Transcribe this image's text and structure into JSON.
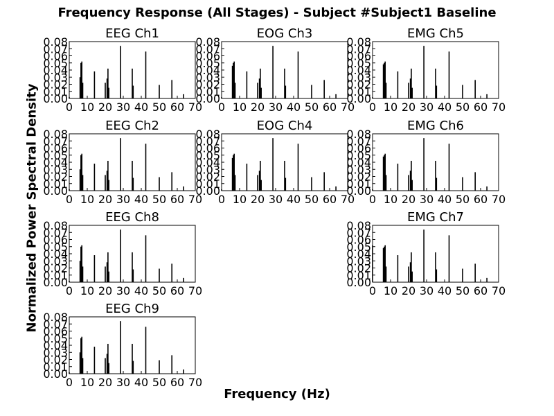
{
  "title": "Frequency Response (All Stages) - Subject #Subject1 Baseline",
  "xlabel": "Frequency (Hz)",
  "ylabel": "Normalized Power Spectral Density",
  "chart_data": {
    "type": "bar",
    "title": "Frequency Response (All Stages) - Subject #Subject1 Baseline",
    "xlabel": "Frequency (Hz)",
    "ylabel": "Normalized Power Spectral Density",
    "xlim": [
      0,
      70
    ],
    "ylim": [
      0,
      0.08
    ],
    "xticks": [
      "0",
      "10",
      "20",
      "30",
      "40",
      "50",
      "60",
      "70"
    ],
    "yticks": [
      "0.00",
      "0.01",
      "0.02",
      "0.03",
      "0.04",
      "0.05",
      "0.06",
      "0.07",
      "0.08"
    ],
    "grid": false,
    "panels": [
      {
        "name": "EEG Ch1",
        "x": [
          0,
          6,
          6.5,
          7,
          7.5,
          14,
          20,
          21,
          21.5,
          22,
          28.5,
          35,
          35.5,
          42.5,
          50,
          57,
          63.5
        ],
        "values": [
          0.002,
          0.03,
          0.05,
          0.052,
          0.022,
          0.038,
          0.022,
          0.028,
          0.042,
          0.015,
          0.074,
          0.042,
          0.018,
          0.066,
          0.019,
          0.026,
          0.006
        ]
      },
      {
        "name": "EOG Ch3",
        "x": [
          0,
          6,
          6.5,
          7,
          7.5,
          14,
          20,
          21,
          21.5,
          22,
          28.5,
          35,
          35.5,
          42.5,
          50,
          57,
          63.5
        ],
        "values": [
          0.002,
          0.046,
          0.05,
          0.052,
          0.022,
          0.038,
          0.022,
          0.028,
          0.042,
          0.015,
          0.074,
          0.042,
          0.018,
          0.066,
          0.019,
          0.026,
          0.006
        ]
      },
      {
        "name": "EMG Ch5",
        "x": [
          0,
          6,
          6.5,
          7,
          7.5,
          14,
          20,
          21,
          21.5,
          22,
          28.5,
          35,
          35.5,
          42.5,
          50,
          57,
          63.5
        ],
        "values": [
          0.002,
          0.048,
          0.05,
          0.052,
          0.022,
          0.038,
          0.022,
          0.028,
          0.042,
          0.015,
          0.074,
          0.042,
          0.018,
          0.066,
          0.019,
          0.026,
          0.006
        ]
      },
      {
        "name": "EEG Ch2",
        "x": [
          0,
          6,
          6.5,
          7,
          7.5,
          14,
          20,
          21,
          21.5,
          22,
          28.5,
          35,
          35.5,
          42.5,
          50,
          57,
          63.5
        ],
        "values": [
          0.002,
          0.03,
          0.05,
          0.052,
          0.022,
          0.038,
          0.022,
          0.028,
          0.042,
          0.015,
          0.074,
          0.042,
          0.018,
          0.066,
          0.019,
          0.026,
          0.006
        ]
      },
      {
        "name": "EOG Ch4",
        "x": [
          0,
          6,
          6.5,
          7,
          7.5,
          14,
          20,
          21,
          21.5,
          22,
          28.5,
          35,
          35.5,
          42.5,
          50,
          57,
          63.5
        ],
        "values": [
          0.002,
          0.046,
          0.05,
          0.052,
          0.022,
          0.038,
          0.022,
          0.028,
          0.042,
          0.015,
          0.074,
          0.042,
          0.018,
          0.066,
          0.019,
          0.026,
          0.006
        ]
      },
      {
        "name": "EMG Ch6",
        "x": [
          0,
          6,
          6.5,
          7,
          7.5,
          14,
          20,
          21,
          21.5,
          22,
          28.5,
          35,
          35.5,
          42.5,
          50,
          57,
          63.5
        ],
        "values": [
          0.002,
          0.048,
          0.05,
          0.052,
          0.022,
          0.038,
          0.022,
          0.028,
          0.042,
          0.015,
          0.074,
          0.042,
          0.018,
          0.066,
          0.019,
          0.026,
          0.006
        ]
      },
      {
        "name": "EEG Ch8",
        "x": [
          0,
          6,
          6.5,
          7,
          7.5,
          14,
          20,
          21,
          21.5,
          22,
          28.5,
          35,
          35.5,
          42.5,
          50,
          57,
          63.5
        ],
        "values": [
          0.002,
          0.03,
          0.05,
          0.052,
          0.022,
          0.038,
          0.022,
          0.028,
          0.042,
          0.015,
          0.074,
          0.042,
          0.018,
          0.066,
          0.019,
          0.026,
          0.006
        ]
      },
      {
        "name": "EMG Ch7",
        "x": [
          0,
          6,
          6.5,
          7,
          7.5,
          14,
          20,
          21,
          21.5,
          22,
          28.5,
          35,
          35.5,
          42.5,
          50,
          57,
          63.5
        ],
        "values": [
          0.052,
          0.048,
          0.05,
          0.052,
          0.022,
          0.038,
          0.022,
          0.028,
          0.042,
          0.015,
          0.074,
          0.042,
          0.018,
          0.066,
          0.019,
          0.026,
          0.006
        ]
      },
      {
        "name": "EEG Ch9",
        "x": [
          0,
          6,
          6.5,
          7,
          7.5,
          14,
          20,
          21,
          21.5,
          22,
          28.5,
          35,
          35.5,
          42.5,
          50,
          57,
          63.5
        ],
        "values": [
          0.002,
          0.03,
          0.05,
          0.052,
          0.022,
          0.038,
          0.022,
          0.028,
          0.042,
          0.015,
          0.074,
          0.042,
          0.018,
          0.066,
          0.019,
          0.026,
          0.006
        ]
      }
    ]
  }
}
